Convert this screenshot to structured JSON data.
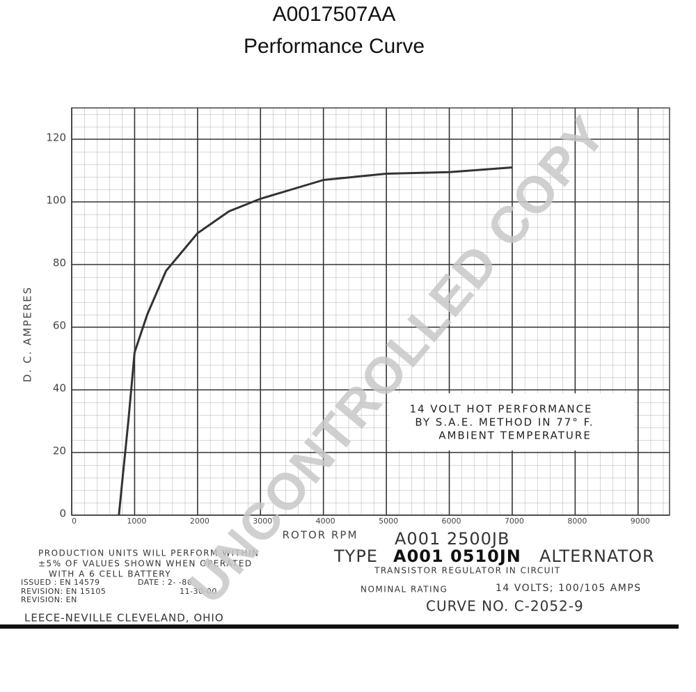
{
  "chart_data": {
    "type": "line",
    "title": "A0017507AA",
    "subtitle": "Performance Curve",
    "y_label": "D. C. AMPERES",
    "x_label": "ROTOR RPM",
    "x": [
      750,
      800,
      900,
      1000,
      1200,
      1500,
      2000,
      2500,
      3000,
      3500,
      4000,
      5000,
      6000,
      7000
    ],
    "series": [
      {
        "name": "14 VOLT HOT PERFORMANCE",
        "color": "#333333",
        "values": [
          0,
          10,
          30,
          52,
          64,
          78,
          90,
          97,
          101,
          104,
          107,
          109,
          109.5,
          111
        ]
      }
    ],
    "xlim": [
      0,
      9500
    ],
    "ylim": [
      0,
      130
    ],
    "xticks": [
      0,
      1000,
      2000,
      3000,
      4000,
      5000,
      6000,
      7000,
      8000,
      9000
    ],
    "yticks": [
      0,
      20,
      40,
      60,
      80,
      100,
      120
    ],
    "grid": true,
    "annotations": [
      "14 VOLT HOT PERFORMANCE",
      "BY S.A.E. METHOD IN 77° F.",
      "AMBIENT TEMPERATURE",
      "A001 2500JB",
      "TYPE",
      "A001 0510JN",
      "ALTERNATOR",
      "TRANSISTOR REGULATOR IN CIRCUIT",
      "NOMINAL RATING",
      "14 VOLTS; 100/105 AMPS",
      "CURVE NO. C-2052-9",
      "PRODUCTION UNITS WILL PERFORM WITHIN",
      "±5% OF VALUES SHOWN WHEN OPERATED",
      "WITH A 6 CELL BATTERY",
      "ISSUED : EN 14579",
      "DATE : 2-  -86",
      "REVISION: EN 15105",
      "11-30-00",
      "REVISION: EN",
      "LEECE-NEVILLE CLEVELAND, OHIO",
      "UNCONTROLLED COPY"
    ]
  }
}
